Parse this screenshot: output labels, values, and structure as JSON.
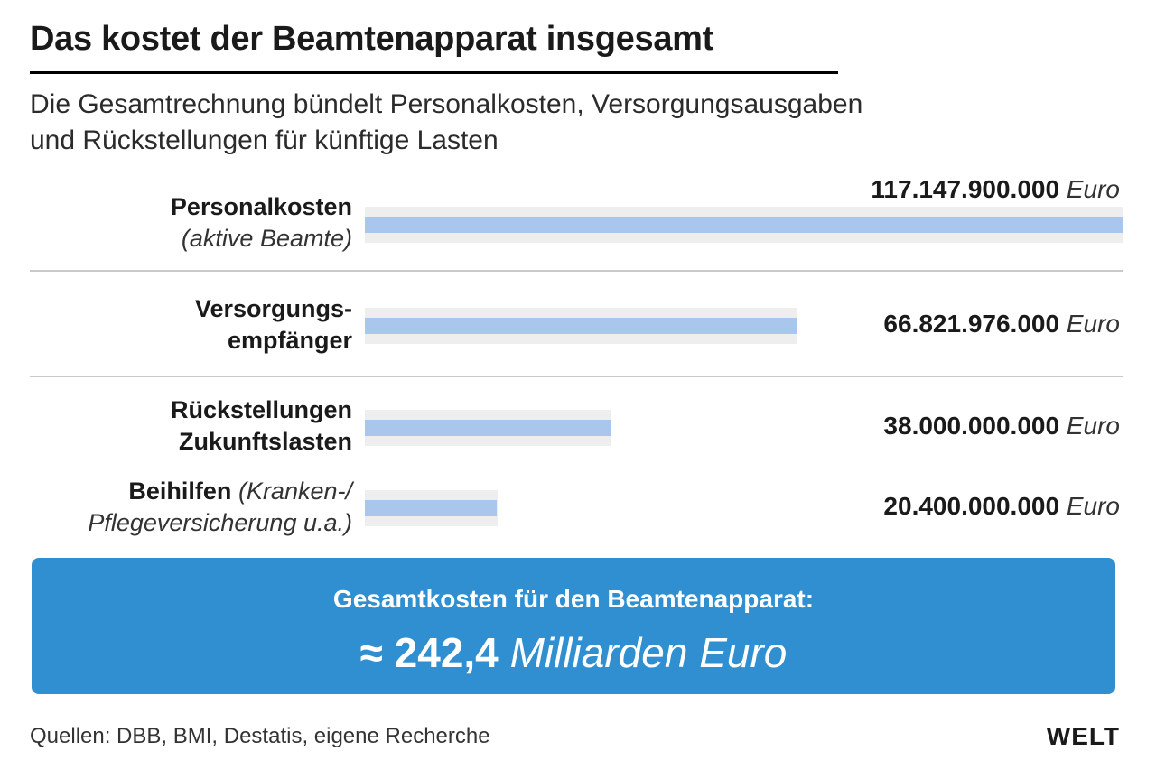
{
  "title": "Das kostet der Beamtenapparat insgesamt",
  "subtitle": {
    "line1": "Die Gesamtrechnung bündelt Personalkosten, Versorgungsausgaben",
    "line2": "und Rückstellungen für künftige Lasten"
  },
  "chart_data": {
    "type": "bar",
    "orientation": "horizontal",
    "categories": [
      "Personalkosten (aktive Beamte)",
      "Versorgungsempfänger",
      "Rückstellungen Zukunftslasten",
      "Beihilfen (Kranken-/Pflegeversicherung u.a.)"
    ],
    "values": [
      117147900000,
      66821976000,
      38000000000,
      20400000000
    ],
    "value_labels": [
      "117.147.900.000",
      "66.821.976.000",
      "38.000.000.000",
      "20.400.000.000"
    ],
    "unit": "Euro",
    "label_lines": [
      {
        "bold": "Personalkosten",
        "italic": "(aktive Beamte)"
      },
      {
        "bold1": "Versorgungs-",
        "bold2": "empfänger"
      },
      {
        "bold1": "Rückstellungen",
        "bold2": "Zukunftslasten"
      },
      {
        "bold": "Beihilfen",
        "italic_a": "(Kranken-/",
        "italic_b": "Pflegeversicherung u.a.)"
      }
    ],
    "colors": {
      "bar": "#a9c7ec",
      "track": "#eeeeee"
    }
  },
  "total": {
    "caption": "Gesamtkosten für den Beamtenapparat:",
    "prefix": "≈",
    "amount": "242,4",
    "unit": "Milliarden Euro",
    "color": "#2f8fd1"
  },
  "source": "Quellen: DBB, BMI, Destatis, eigene Recherche",
  "logo": "WELT"
}
